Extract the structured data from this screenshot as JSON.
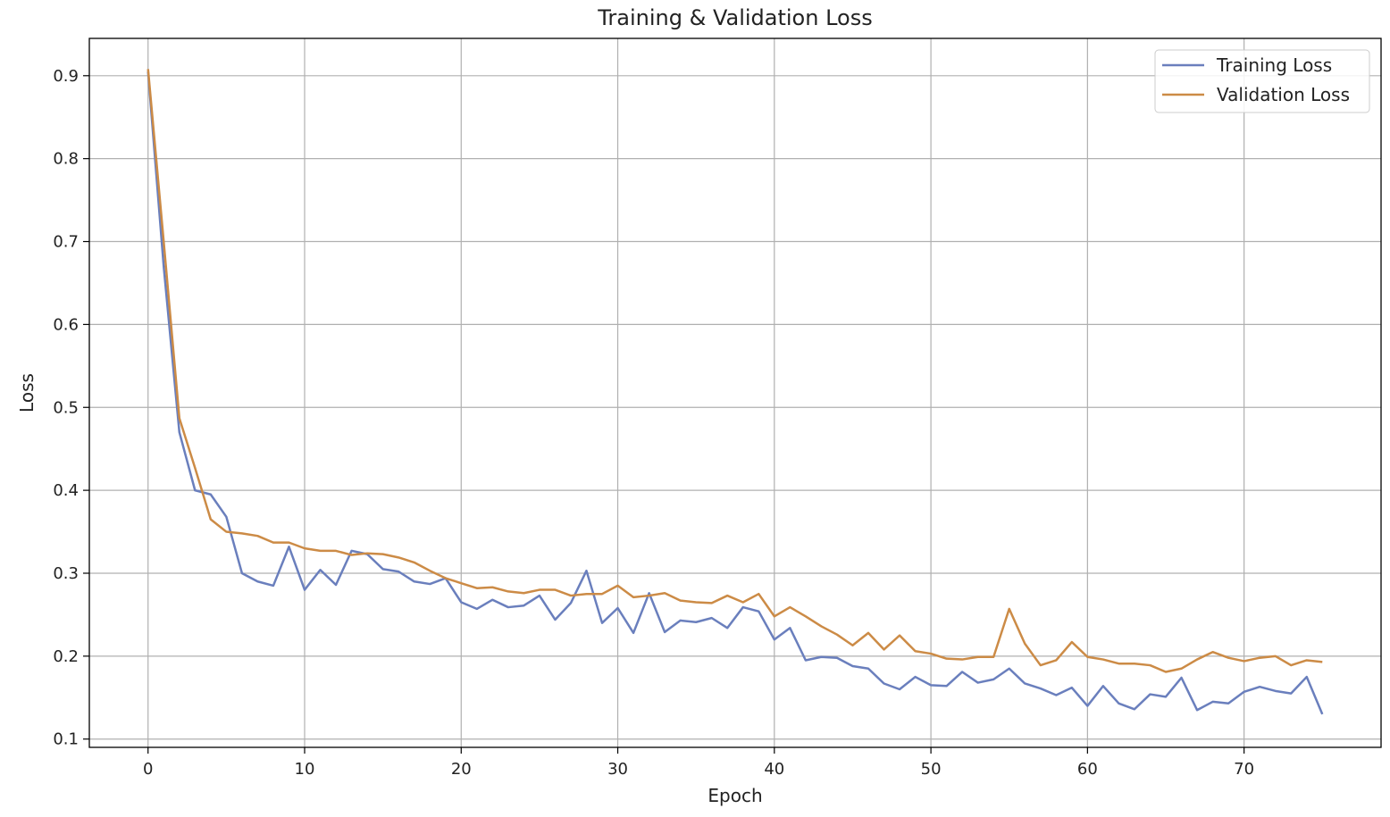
{
  "chart_data": {
    "type": "line",
    "title": "Training & Validation Loss",
    "xlabel": "Epoch",
    "ylabel": "Loss",
    "xlim": [
      -3.75,
      78.75
    ],
    "ylim": [
      0.09,
      0.945
    ],
    "xticks": [
      0,
      10,
      20,
      30,
      40,
      50,
      60,
      70
    ],
    "yticks": [
      0.1,
      0.2,
      0.3,
      0.4,
      0.5,
      0.6,
      0.7,
      0.8,
      0.9
    ],
    "grid": true,
    "legend_position": "top-right",
    "series": [
      {
        "name": "Training Loss",
        "color": "#6a7fbd",
        "values": [
          0.905,
          0.67,
          0.47,
          0.4,
          0.395,
          0.368,
          0.3,
          0.29,
          0.285,
          0.332,
          0.28,
          0.304,
          0.286,
          0.327,
          0.323,
          0.305,
          0.302,
          0.29,
          0.287,
          0.294,
          0.265,
          0.257,
          0.268,
          0.259,
          0.261,
          0.273,
          0.244,
          0.264,
          0.303,
          0.24,
          0.258,
          0.228,
          0.276,
          0.229,
          0.243,
          0.241,
          0.246,
          0.234,
          0.259,
          0.254,
          0.22,
          0.234,
          0.195,
          0.199,
          0.198,
          0.188,
          0.185,
          0.167,
          0.16,
          0.175,
          0.165,
          0.164,
          0.181,
          0.168,
          0.172,
          0.185,
          0.167,
          0.161,
          0.153,
          0.162,
          0.14,
          0.164,
          0.143,
          0.136,
          0.154,
          0.151,
          0.174,
          0.135,
          0.145,
          0.143,
          0.157,
          0.163,
          0.158,
          0.155,
          0.175,
          0.13
        ]
      },
      {
        "name": "Validation Loss",
        "color": "#cc8b46",
        "values": [
          0.908,
          0.7,
          0.487,
          0.427,
          0.365,
          0.35,
          0.348,
          0.345,
          0.337,
          0.337,
          0.33,
          0.327,
          0.327,
          0.322,
          0.324,
          0.323,
          0.319,
          0.313,
          0.303,
          0.294,
          0.288,
          0.282,
          0.283,
          0.278,
          0.276,
          0.28,
          0.28,
          0.273,
          0.275,
          0.275,
          0.285,
          0.271,
          0.273,
          0.276,
          0.267,
          0.265,
          0.264,
          0.273,
          0.265,
          0.275,
          0.248,
          0.259,
          0.248,
          0.236,
          0.226,
          0.213,
          0.228,
          0.208,
          0.225,
          0.206,
          0.203,
          0.197,
          0.196,
          0.199,
          0.199,
          0.257,
          0.215,
          0.189,
          0.195,
          0.217,
          0.199,
          0.196,
          0.191,
          0.191,
          0.189,
          0.181,
          0.185,
          0.196,
          0.205,
          0.198,
          0.194,
          0.198,
          0.2,
          0.189,
          0.195,
          0.193
        ]
      }
    ]
  }
}
